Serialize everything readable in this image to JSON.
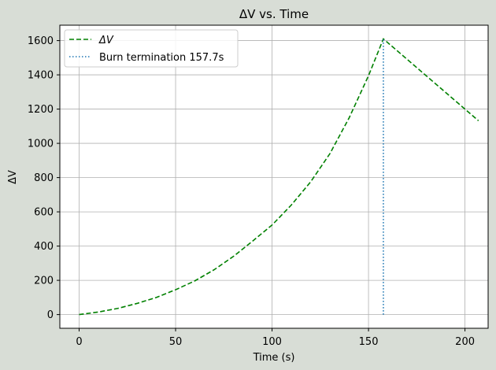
{
  "chart_data": {
    "type": "line",
    "title": "ΔV vs. Time",
    "xlabel": "Time (s)",
    "ylabel": "ΔV",
    "xlim": [
      -10,
      212
    ],
    "ylim": [
      -80,
      1690
    ],
    "xticks": [
      0,
      50,
      100,
      150,
      200
    ],
    "yticks": [
      0,
      200,
      400,
      600,
      800,
      1000,
      1200,
      1400,
      1600
    ],
    "grid": true,
    "legend_position": "top-left",
    "series": [
      {
        "name": "ΔV",
        "style": "dashed",
        "color": "#008000",
        "x": [
          0,
          10,
          20,
          30,
          40,
          50,
          60,
          70,
          80,
          90,
          100,
          110,
          120,
          130,
          140,
          150,
          157.7,
          207
        ],
        "y": [
          0,
          15,
          36,
          65,
          100,
          145,
          197,
          262,
          340,
          430,
          523,
          640,
          775,
          940,
          1150,
          1395,
          1610,
          1132
        ]
      },
      {
        "name": "Burn termination 157.7s",
        "style": "dotted",
        "color": "#1f77b4",
        "x": [
          157.7,
          157.7
        ],
        "y": [
          0,
          1610
        ]
      }
    ]
  }
}
